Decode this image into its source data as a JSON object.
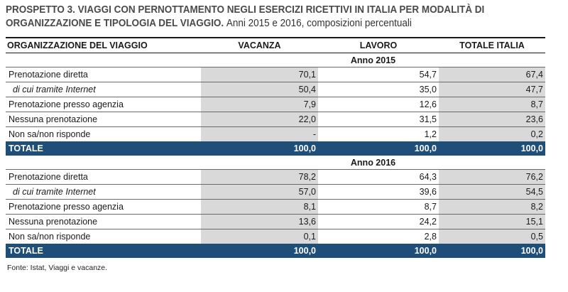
{
  "title": {
    "bold": "PROSPETTO 3. VIAGGI CON PERNOTTAMENTO NEGLI ESERCIZI RICETTIVI IN ITALIA PER MODALITÀ DI",
    "bold_line2": "ORGANIZZAZIONE E TIPOLOGIA DEL VIAGGIO.",
    "normal": "Anni 2015 e 2016, composizioni percentuali"
  },
  "headers": {
    "label": "ORGANIZZAZIONE DEL VIAGGIO",
    "vacanza": "VACANZA",
    "lavoro": "LAVORO",
    "totale": "TOTALE ITALIA"
  },
  "sections": [
    {
      "year_label": "Anno 2015",
      "rows": [
        {
          "label": "Prenotazione diretta",
          "vacanza": "70,1",
          "lavoro": "54,7",
          "totale": "67,4"
        },
        {
          "label": "di cui tramite Internet",
          "vacanza": "50,4",
          "lavoro": "35,0",
          "totale": "47,7"
        },
        {
          "label": "Prenotazione presso agenzia",
          "vacanza": "7,9",
          "lavoro": "12,6",
          "totale": "8,7"
        },
        {
          "label": "Nessuna prenotazione",
          "vacanza": "22,0",
          "lavoro": "31,5",
          "totale": "23,6"
        },
        {
          "label": "Non sa/non risponde",
          "vacanza": "-",
          "lavoro": "1,2",
          "totale": "0,2"
        }
      ],
      "total": {
        "label": "TOTALE",
        "vacanza": "100,0",
        "lavoro": "100,0",
        "totale": "100,0"
      }
    },
    {
      "year_label": "Anno 2016",
      "rows": [
        {
          "label": "Prenotazione diretta",
          "vacanza": "78,2",
          "lavoro": "64,3",
          "totale": "76,2"
        },
        {
          "label": "di cui tramite Internet",
          "vacanza": "57,0",
          "lavoro": "39,6",
          "totale": "54,5"
        },
        {
          "label": "Prenotazione presso agenzia",
          "vacanza": "8,1",
          "lavoro": "8,7",
          "totale": "8,2"
        },
        {
          "label": "Nessuna prenotazione",
          "vacanza": "13,6",
          "lavoro": "24,2",
          "totale": "15,1"
        },
        {
          "label": "Non sa/non risponde",
          "vacanza": "0,1",
          "lavoro": "2,8",
          "totale": "0,5"
        }
      ],
      "total": {
        "label": "TOTALE",
        "vacanza": "100,0",
        "lavoro": "100,0",
        "totale": "100,0"
      }
    }
  ],
  "source": "Fonte: Istat, Viaggi e vacanze.",
  "colors": {
    "total_row_bg": "#1f4e79",
    "shaded_cell_bg": "#d9d9d9"
  }
}
